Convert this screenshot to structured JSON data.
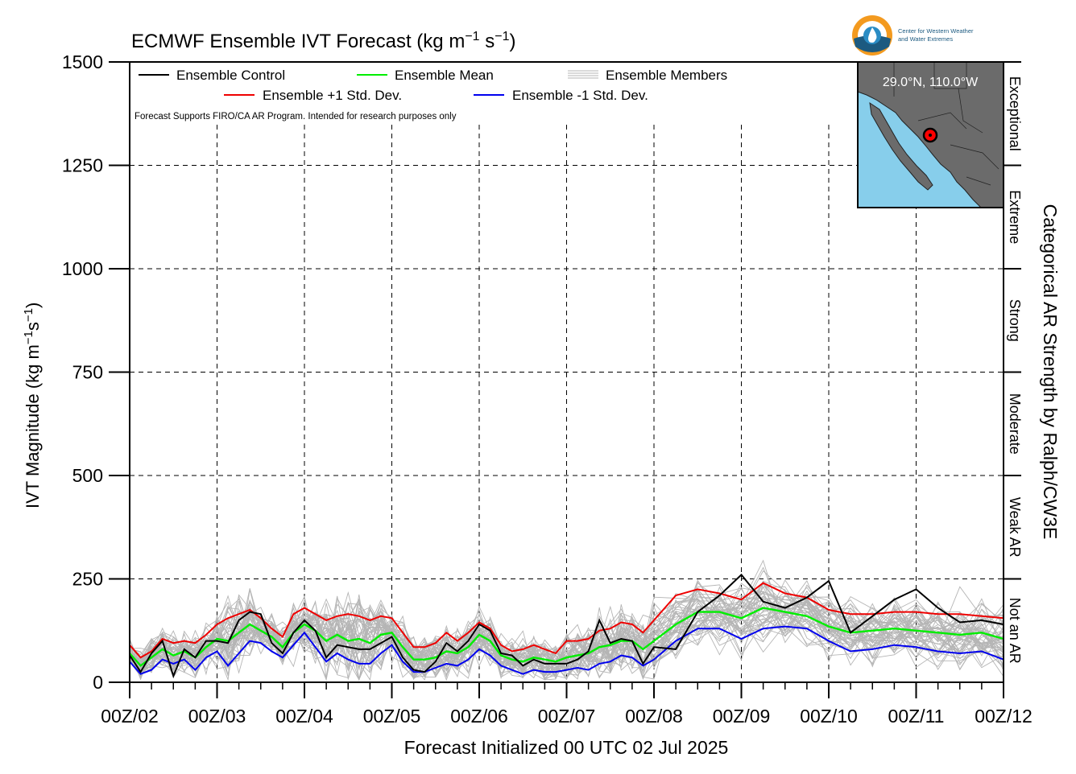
{
  "chart_data": {
    "type": "line",
    "title": "ECMWF Ensemble IVT Forecast (kg m⁻¹ s⁻¹)",
    "title_main": "ECMWF Ensemble IVT Forecast (kg m",
    "title_units_tail": ")",
    "ylabel": "IVT Magnitude (kg m⁻¹s⁻¹)",
    "ylabel_main": "IVT Magnitude (kg m",
    "xlabel": "Forecast Initialized 00 UTC 02 Jul 2025",
    "right_label": "Categorical AR Strength by Ralph/CW3E",
    "disclaimer": "Forecast Supports FIRO/CA AR Program. Intended for research purposes only",
    "location_label": "29.0°N, 110.0°W",
    "logo_text": [
      "Center for Western Weather",
      "and Water Extremes"
    ],
    "ylim": [
      0,
      1500
    ],
    "xlim": [
      0,
      10
    ],
    "yticks": [
      0,
      250,
      500,
      750,
      1000,
      1250,
      1500
    ],
    "yticks_labels": [
      "0",
      "250",
      "500",
      "750",
      "1000",
      "1250",
      "1500"
    ],
    "xtick_positions": [
      0,
      1,
      2,
      3,
      4,
      5,
      6,
      7,
      8,
      9,
      10
    ],
    "xtick_labels": [
      "00Z/02",
      "00Z/03",
      "00Z/04",
      "00Z/05",
      "00Z/06",
      "00Z/07",
      "00Z/08",
      "00Z/09",
      "00Z/10",
      "00Z/11",
      "00Z/12"
    ],
    "grid": true,
    "legend_placement": "top-left",
    "categories_ar": [
      {
        "label": "Not an AR",
        "min": 0,
        "max": 250
      },
      {
        "label": "Weak AR",
        "min": 250,
        "max": 500
      },
      {
        "label": "Moderate",
        "min": 500,
        "max": 750
      },
      {
        "label": "Strong",
        "min": 750,
        "max": 1000
      },
      {
        "label": "Extreme",
        "min": 1000,
        "max": 1250
      },
      {
        "label": "Exceptional",
        "min": 1250,
        "max": 1500
      }
    ],
    "series": [
      {
        "name": "Ensemble Control",
        "color": "#000000",
        "x": [
          0,
          0.125,
          0.25,
          0.375,
          0.5,
          0.625,
          0.75,
          0.875,
          1.0,
          1.125,
          1.25,
          1.375,
          1.5,
          1.625,
          1.75,
          1.875,
          2.0,
          2.125,
          2.25,
          2.375,
          2.5,
          2.625,
          2.75,
          2.875,
          3.0,
          3.125,
          3.25,
          3.375,
          3.5,
          3.625,
          3.75,
          3.875,
          4.0,
          4.125,
          4.25,
          4.375,
          4.5,
          4.625,
          4.75,
          4.875,
          5.0,
          5.125,
          5.25,
          5.375,
          5.5,
          5.625,
          5.75,
          5.875,
          6.0,
          6.25,
          6.5,
          6.75,
          7.0,
          7.25,
          7.5,
          7.75,
          8.0,
          8.25,
          8.5,
          8.75,
          9.0,
          9.25,
          9.5,
          9.75,
          10.0
        ],
        "values": [
          65,
          25,
          70,
          100,
          15,
          80,
          60,
          100,
          100,
          95,
          150,
          170,
          165,
          95,
          70,
          120,
          150,
          125,
          60,
          90,
          85,
          80,
          80,
          95,
          110,
          60,
          30,
          25,
          50,
          95,
          75,
          100,
          140,
          125,
          70,
          65,
          40,
          55,
          45,
          45,
          45,
          55,
          75,
          150,
          95,
          105,
          100,
          45,
          85,
          80,
          170,
          210,
          260,
          195,
          180,
          205,
          245,
          120,
          160,
          200,
          225,
          180,
          145,
          150,
          140
        ]
      },
      {
        "name": "Ensemble Mean",
        "color": "#00ee00",
        "x": [
          0,
          0.125,
          0.25,
          0.375,
          0.5,
          0.625,
          0.75,
          0.875,
          1.0,
          1.125,
          1.25,
          1.375,
          1.5,
          1.625,
          1.75,
          1.875,
          2.0,
          2.125,
          2.25,
          2.375,
          2.5,
          2.625,
          2.75,
          2.875,
          3.0,
          3.125,
          3.25,
          3.375,
          3.5,
          3.625,
          3.75,
          3.875,
          4.0,
          4.125,
          4.25,
          4.375,
          4.5,
          4.625,
          4.75,
          4.875,
          5.0,
          5.125,
          5.25,
          5.375,
          5.5,
          5.625,
          5.75,
          5.875,
          6.0,
          6.25,
          6.5,
          6.75,
          7.0,
          7.25,
          7.5,
          7.75,
          8.0,
          8.25,
          8.5,
          8.75,
          9.0,
          9.25,
          9.5,
          9.75,
          10.0
        ],
        "values": [
          70,
          40,
          60,
          80,
          65,
          75,
          60,
          85,
          105,
          100,
          120,
          140,
          125,
          110,
          85,
          120,
          140,
          125,
          100,
          115,
          100,
          105,
          95,
          115,
          120,
          85,
          55,
          55,
          60,
          75,
          70,
          85,
          115,
          100,
          65,
          55,
          50,
          60,
          55,
          50,
          60,
          65,
          70,
          85,
          90,
          100,
          100,
          80,
          100,
          140,
          170,
          170,
          155,
          180,
          170,
          160,
          135,
          120,
          125,
          130,
          125,
          120,
          115,
          120,
          105
        ]
      },
      {
        "name": "Ensemble +1 Std. Dev.",
        "color": "#ee0000",
        "x": [
          0,
          0.125,
          0.25,
          0.375,
          0.5,
          0.625,
          0.75,
          0.875,
          1.0,
          1.125,
          1.25,
          1.375,
          1.5,
          1.625,
          1.75,
          1.875,
          2.0,
          2.125,
          2.25,
          2.375,
          2.5,
          2.625,
          2.75,
          2.875,
          3.0,
          3.125,
          3.25,
          3.375,
          3.5,
          3.625,
          3.75,
          3.875,
          4.0,
          4.125,
          4.25,
          4.375,
          4.5,
          4.625,
          4.75,
          4.875,
          5.0,
          5.125,
          5.25,
          5.375,
          5.5,
          5.625,
          5.75,
          5.875,
          6.0,
          6.25,
          6.5,
          6.75,
          7.0,
          7.25,
          7.5,
          7.75,
          8.0,
          8.25,
          8.5,
          8.75,
          9.0,
          9.25,
          9.5,
          9.75,
          10.0
        ],
        "values": [
          90,
          60,
          75,
          105,
          95,
          100,
          95,
          115,
          140,
          155,
          165,
          175,
          155,
          130,
          110,
          165,
          180,
          165,
          150,
          160,
          165,
          160,
          150,
          160,
          155,
          120,
          85,
          85,
          95,
          120,
          100,
          120,
          145,
          130,
          90,
          75,
          80,
          90,
          80,
          70,
          100,
          100,
          105,
          125,
          130,
          145,
          140,
          120,
          150,
          210,
          225,
          215,
          200,
          240,
          215,
          205,
          175,
          165,
          165,
          170,
          170,
          165,
          165,
          160,
          155
        ]
      },
      {
        "name": "Ensemble -1 Std. Dev.",
        "color": "#0000ee",
        "x": [
          0,
          0.125,
          0.25,
          0.375,
          0.5,
          0.625,
          0.75,
          0.875,
          1.0,
          1.125,
          1.25,
          1.375,
          1.5,
          1.625,
          1.75,
          1.875,
          2.0,
          2.125,
          2.25,
          2.375,
          2.5,
          2.625,
          2.75,
          2.875,
          3.0,
          3.125,
          3.25,
          3.375,
          3.5,
          3.625,
          3.75,
          3.875,
          4.0,
          4.125,
          4.25,
          4.375,
          4.5,
          4.625,
          4.75,
          4.875,
          5.0,
          5.125,
          5.25,
          5.375,
          5.5,
          5.625,
          5.75,
          5.875,
          6.0,
          6.25,
          6.5,
          6.75,
          7.0,
          7.25,
          7.5,
          7.75,
          8.0,
          8.25,
          8.5,
          8.75,
          9.0,
          9.25,
          9.5,
          9.75,
          10.0
        ],
        "values": [
          50,
          20,
          30,
          55,
          45,
          55,
          30,
          60,
          75,
          40,
          70,
          100,
          95,
          75,
          60,
          90,
          120,
          85,
          50,
          70,
          55,
          45,
          45,
          70,
          90,
          50,
          25,
          25,
          35,
          45,
          40,
          55,
          80,
          65,
          40,
          30,
          20,
          30,
          25,
          25,
          30,
          35,
          30,
          45,
          50,
          65,
          60,
          40,
          55,
          100,
          130,
          130,
          105,
          130,
          135,
          130,
          100,
          75,
          80,
          90,
          85,
          75,
          70,
          75,
          55
        ]
      },
      {
        "name": "Ensemble Members",
        "color": "#b5b5b5"
      }
    ]
  }
}
